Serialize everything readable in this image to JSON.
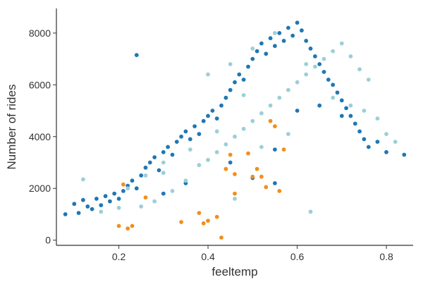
{
  "chart_data": {
    "type": "scatter",
    "xlabel": "feeltemp",
    "ylabel": "Number of rides",
    "xlim": [
      0.06,
      0.86
    ],
    "ylim": [
      -200,
      8950
    ],
    "xticks": [
      0.2,
      0.4,
      0.6,
      0.8
    ],
    "xtick_labels": [
      "0.2",
      "0.4",
      "0.6",
      "0.8"
    ],
    "yticks": [
      0,
      2000,
      4000,
      6000,
      8000
    ],
    "ytick_labels": [
      "0",
      "2000",
      "4000",
      "6000",
      "8000"
    ],
    "grid": false,
    "legend": "none",
    "series": [
      {
        "color": "#1f77b4",
        "points": [
          [
            0.08,
            1000
          ],
          [
            0.1,
            1400
          ],
          [
            0.11,
            1050
          ],
          [
            0.12,
            1550
          ],
          [
            0.13,
            1300
          ],
          [
            0.14,
            1200
          ],
          [
            0.15,
            1600
          ],
          [
            0.16,
            1350
          ],
          [
            0.17,
            1700
          ],
          [
            0.18,
            1500
          ],
          [
            0.19,
            1800
          ],
          [
            0.2,
            1600
          ],
          [
            0.21,
            1900
          ],
          [
            0.22,
            2100
          ],
          [
            0.23,
            2300
          ],
          [
            0.24,
            2000
          ],
          [
            0.25,
            2500
          ],
          [
            0.26,
            2800
          ],
          [
            0.27,
            3000
          ],
          [
            0.28,
            3200
          ],
          [
            0.29,
            2700
          ],
          [
            0.3,
            3400
          ],
          [
            0.31,
            3600
          ],
          [
            0.32,
            3300
          ],
          [
            0.33,
            3800
          ],
          [
            0.34,
            4000
          ],
          [
            0.35,
            4200
          ],
          [
            0.36,
            3900
          ],
          [
            0.37,
            4400
          ],
          [
            0.38,
            4100
          ],
          [
            0.39,
            4600
          ],
          [
            0.4,
            4800
          ],
          [
            0.41,
            5000
          ],
          [
            0.42,
            4700
          ],
          [
            0.43,
            5200
          ],
          [
            0.44,
            5500
          ],
          [
            0.45,
            5800
          ],
          [
            0.46,
            6100
          ],
          [
            0.47,
            6400
          ],
          [
            0.48,
            6200
          ],
          [
            0.49,
            6700
          ],
          [
            0.5,
            7000
          ],
          [
            0.51,
            7300
          ],
          [
            0.52,
            7600
          ],
          [
            0.53,
            7200
          ],
          [
            0.54,
            7800
          ],
          [
            0.55,
            7500
          ],
          [
            0.56,
            8000
          ],
          [
            0.57,
            7700
          ],
          [
            0.58,
            8200
          ],
          [
            0.59,
            7900
          ],
          [
            0.6,
            8400
          ],
          [
            0.61,
            8100
          ],
          [
            0.62,
            7700
          ],
          [
            0.63,
            7400
          ],
          [
            0.64,
            7100
          ],
          [
            0.65,
            6800
          ],
          [
            0.66,
            6500
          ],
          [
            0.67,
            6200
          ],
          [
            0.68,
            6000
          ],
          [
            0.69,
            5700
          ],
          [
            0.7,
            5400
          ],
          [
            0.71,
            5100
          ],
          [
            0.72,
            4800
          ],
          [
            0.73,
            4500
          ],
          [
            0.74,
            4200
          ],
          [
            0.75,
            3900
          ],
          [
            0.76,
            3600
          ],
          [
            0.78,
            3800
          ],
          [
            0.8,
            3400
          ],
          [
            0.84,
            3300
          ],
          [
            0.24,
            7150
          ],
          [
            0.5,
            2400
          ],
          [
            0.55,
            2200
          ],
          [
            0.6,
            5000
          ],
          [
            0.65,
            5200
          ],
          [
            0.7,
            4800
          ],
          [
            0.3,
            1800
          ],
          [
            0.35,
            2200
          ],
          [
            0.45,
            3000
          ],
          [
            0.55,
            3500
          ]
        ]
      },
      {
        "color": "#9ccfd8",
        "points": [
          [
            0.12,
            2350
          ],
          [
            0.16,
            1100
          ],
          [
            0.2,
            1250
          ],
          [
            0.22,
            2000
          ],
          [
            0.25,
            1300
          ],
          [
            0.28,
            1500
          ],
          [
            0.3,
            2600
          ],
          [
            0.32,
            1900
          ],
          [
            0.35,
            2300
          ],
          [
            0.38,
            2900
          ],
          [
            0.4,
            3100
          ],
          [
            0.42,
            3400
          ],
          [
            0.44,
            3700
          ],
          [
            0.46,
            4000
          ],
          [
            0.48,
            4300
          ],
          [
            0.5,
            4600
          ],
          [
            0.52,
            4900
          ],
          [
            0.54,
            5200
          ],
          [
            0.56,
            5500
          ],
          [
            0.58,
            5800
          ],
          [
            0.6,
            6100
          ],
          [
            0.62,
            6400
          ],
          [
            0.64,
            6700
          ],
          [
            0.66,
            7000
          ],
          [
            0.68,
            7300
          ],
          [
            0.7,
            7600
          ],
          [
            0.72,
            7100
          ],
          [
            0.74,
            6600
          ],
          [
            0.76,
            6200
          ],
          [
            0.78,
            4700
          ],
          [
            0.8,
            4100
          ],
          [
            0.82,
            3800
          ],
          [
            0.63,
            1100
          ],
          [
            0.46,
            1600
          ],
          [
            0.52,
            3600
          ],
          [
            0.58,
            4100
          ],
          [
            0.48,
            5600
          ],
          [
            0.42,
            4200
          ],
          [
            0.36,
            3500
          ],
          [
            0.3,
            3000
          ],
          [
            0.26,
            2500
          ],
          [
            0.4,
            6400
          ],
          [
            0.45,
            6800
          ],
          [
            0.5,
            7400
          ],
          [
            0.55,
            8000
          ],
          [
            0.62,
            6800
          ],
          [
            0.68,
            5500
          ],
          [
            0.72,
            5200
          ],
          [
            0.75,
            5000
          ]
        ]
      },
      {
        "color": "#f28e1c",
        "points": [
          [
            0.2,
            550
          ],
          [
            0.21,
            2150
          ],
          [
            0.22,
            450
          ],
          [
            0.23,
            550
          ],
          [
            0.26,
            1650
          ],
          [
            0.34,
            700
          ],
          [
            0.38,
            1050
          ],
          [
            0.39,
            650
          ],
          [
            0.4,
            750
          ],
          [
            0.42,
            900
          ],
          [
            0.43,
            100
          ],
          [
            0.44,
            2750
          ],
          [
            0.45,
            3300
          ],
          [
            0.46,
            2550
          ],
          [
            0.46,
            1800
          ],
          [
            0.49,
            3350
          ],
          [
            0.5,
            2450
          ],
          [
            0.51,
            2750
          ],
          [
            0.52,
            2450
          ],
          [
            0.53,
            2050
          ],
          [
            0.54,
            4600
          ],
          [
            0.55,
            4400
          ],
          [
            0.56,
            1900
          ],
          [
            0.57,
            3500
          ]
        ]
      }
    ]
  }
}
